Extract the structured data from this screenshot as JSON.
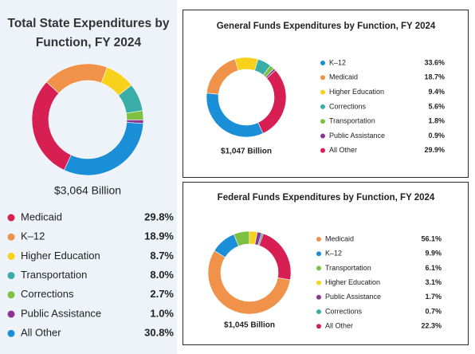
{
  "chart_data": [
    {
      "type": "pie",
      "title": "Total State Expenditures by Function, FY 2024",
      "total": "$3,064 Billion",
      "categories": [
        "Medicaid",
        "K–12",
        "Higher Education",
        "Transportation",
        "Corrections",
        "Public Assistance",
        "All Other"
      ],
      "values": [
        29.8,
        18.9,
        8.7,
        8.0,
        2.7,
        1.0,
        30.8
      ],
      "value_labels": [
        "29.8%",
        "18.9%",
        "8.7%",
        "8.0%",
        "2.7%",
        "1.0%",
        "30.8%"
      ],
      "colors": [
        "#d81f54",
        "#f0924a",
        "#f8d11c",
        "#3aaea6",
        "#7cc142",
        "#8b3693",
        "#1a8ed6"
      ]
    },
    {
      "type": "pie",
      "title": "General Funds Expenditures by Function, FY 2024",
      "total": "$1,047 Billion",
      "categories": [
        "K–12",
        "Medicaid",
        "Higher Education",
        "Corrections",
        "Transportation",
        "Public Assistance",
        "All Other"
      ],
      "values": [
        33.6,
        18.7,
        9.4,
        5.6,
        1.8,
        0.9,
        29.9
      ],
      "value_labels": [
        "33.6%",
        "18.7%",
        "9.4%",
        "5.6%",
        "1.8%",
        "0.9%",
        "29.9%"
      ],
      "colors": [
        "#1a8ed6",
        "#f0924a",
        "#f8d11c",
        "#3aaea6",
        "#7cc142",
        "#8b3693",
        "#d81f54"
      ]
    },
    {
      "type": "pie",
      "title": "Federal Funds Expenditures by Function, FY 2024",
      "total": "$1,045 Billion",
      "categories": [
        "Medicaid",
        "K–12",
        "Transportation",
        "Higher Education",
        "Public Assistance",
        "Corrections",
        "All Other"
      ],
      "values": [
        56.1,
        9.9,
        6.1,
        3.1,
        1.7,
        0.7,
        22.3
      ],
      "value_labels": [
        "56.1%",
        "9.9%",
        "6.1%",
        "3.1%",
        "1.7%",
        "0.7%",
        "22.3%"
      ],
      "colors": [
        "#f0924a",
        "#1a8ed6",
        "#7cc142",
        "#f8d11c",
        "#8b3693",
        "#3aaea6",
        "#d81f54"
      ]
    }
  ]
}
